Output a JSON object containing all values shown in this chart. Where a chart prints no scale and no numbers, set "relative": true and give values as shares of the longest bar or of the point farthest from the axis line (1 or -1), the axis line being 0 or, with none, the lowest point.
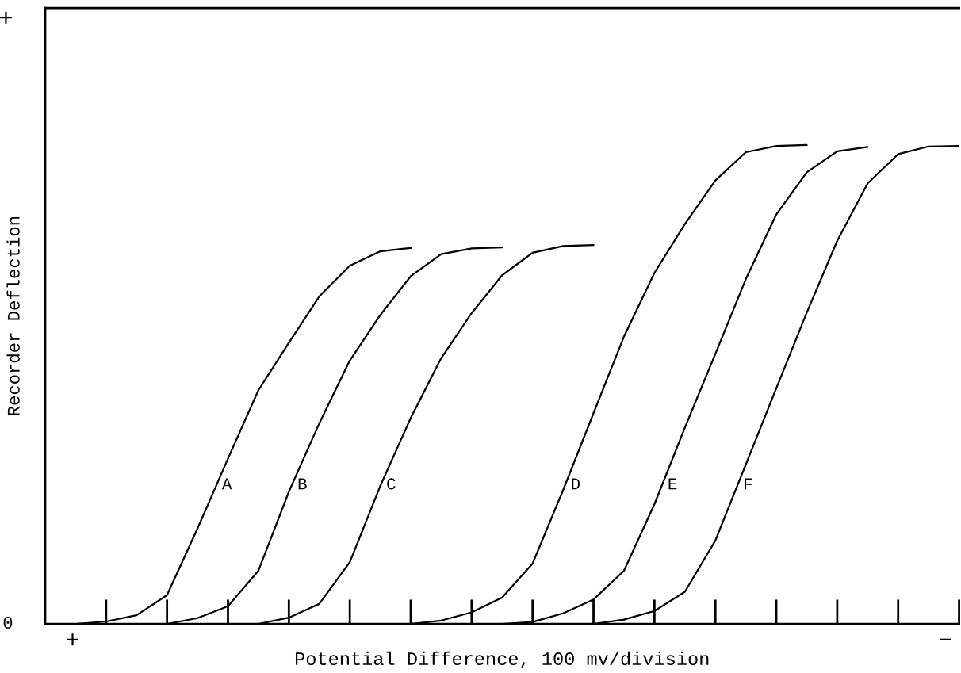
{
  "chart_data": {
    "type": "line",
    "relative": true,
    "xlabel": "Potential Difference, 100 mv/division",
    "ylabel": "Recorder Deflection",
    "categories": [
      null,
      null,
      null,
      null,
      null,
      null,
      null,
      null,
      null,
      null,
      null,
      null,
      null,
      null,
      null,
      null,
      null,
      null,
      null,
      null,
      null,
      null,
      null,
      null,
      null,
      null,
      null,
      null,
      null,
      null,
      null
    ],
    "tick_labels": false,
    "grid": false,
    "legend": false,
    "marker": "none",
    "line_style": "solid",
    "annotations": [
      "+",
      "0",
      "+",
      "−"
    ],
    "series": [
      {
        "name": "A",
        "color": "#000000",
        "values": [
          null,
          0,
          0.005,
          0.018,
          0.06,
          0.199,
          0.345,
          0.488,
          0.587,
          0.684,
          0.748,
          0.778,
          0.785,
          null,
          null,
          null,
          null,
          null,
          null,
          null,
          null,
          null,
          null,
          null,
          null,
          null,
          null,
          null,
          null,
          null,
          null
        ]
      },
      {
        "name": "B",
        "color": "#000000",
        "values": [
          null,
          null,
          null,
          null,
          0,
          0.012,
          0.037,
          0.111,
          0.276,
          0.419,
          0.55,
          0.645,
          0.726,
          0.772,
          0.784,
          0.786,
          null,
          null,
          null,
          null,
          null,
          null,
          null,
          null,
          null,
          null,
          null,
          null,
          null,
          null,
          null
        ]
      },
      {
        "name": "C",
        "color": "#000000",
        "values": [
          null,
          null,
          null,
          null,
          null,
          null,
          null,
          0,
          0.013,
          0.042,
          0.129,
          0.288,
          0.43,
          0.555,
          0.649,
          0.728,
          0.775,
          0.789,
          0.791,
          null,
          null,
          null,
          null,
          null,
          null,
          null,
          null,
          null,
          null,
          null,
          null
        ]
      },
      {
        "name": "D",
        "color": "#000000",
        "values": [
          null,
          null,
          null,
          null,
          null,
          null,
          null,
          null,
          null,
          null,
          null,
          null,
          0,
          0.007,
          0.024,
          0.055,
          0.126,
          0.279,
          0.44,
          0.6,
          0.733,
          0.835,
          0.926,
          0.985,
          0.998,
          1.0,
          null,
          null,
          null,
          null,
          null
        ]
      },
      {
        "name": "E",
        "color": "#000000",
        "values": [
          null,
          null,
          null,
          null,
          null,
          null,
          null,
          null,
          null,
          null,
          null,
          null,
          null,
          null,
          null,
          0,
          0.004,
          0.022,
          0.051,
          0.111,
          0.25,
          0.41,
          0.564,
          0.72,
          0.855,
          0.943,
          0.987,
          0.996,
          null,
          null,
          null
        ]
      },
      {
        "name": "F",
        "color": "#000000",
        "values": [
          null,
          null,
          null,
          null,
          null,
          null,
          null,
          null,
          null,
          null,
          null,
          null,
          null,
          null,
          null,
          null,
          null,
          null,
          0,
          0.009,
          0.027,
          0.067,
          0.174,
          0.333,
          0.492,
          0.65,
          0.8,
          0.92,
          0.981,
          0.997,
          0.998
        ]
      }
    ]
  }
}
